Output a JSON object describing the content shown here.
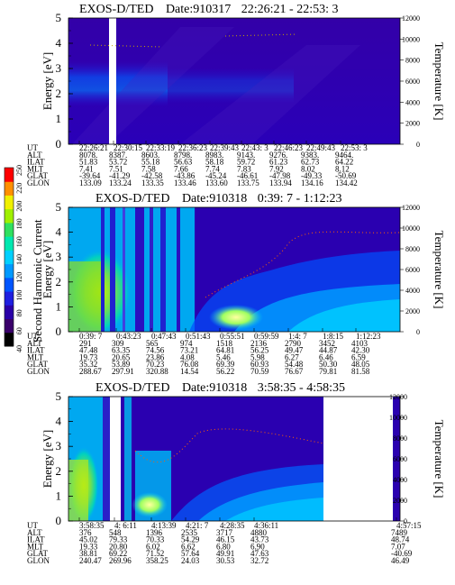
{
  "colorbar": {
    "label": "Second Harmonic Current",
    "ticks": [
      "40",
      "60",
      "80",
      "100",
      "120",
      "140",
      "160",
      "180",
      "200",
      "220",
      "250"
    ],
    "colors": [
      "#000000",
      "#3a006a",
      "#2a00a8",
      "#1f1fe0",
      "#0055ff",
      "#0099ff",
      "#00d0ff",
      "#00e8b0",
      "#30e060",
      "#a0f000",
      "#f0f000",
      "#ff9000",
      "#ff0000"
    ]
  },
  "chart_data": [
    {
      "type": "heatmap",
      "title": "EXOS-D/TED",
      "date_label": "Date:910317",
      "time_range": "22:26:21 - 22:53: 3",
      "ylabel": "Energy [eV]",
      "y2label": "Temperature [K]",
      "ylim": [
        0,
        5
      ],
      "y_ticks": [
        "0",
        "1",
        "2",
        "3",
        "4",
        "5"
      ],
      "y2lim": [
        0,
        12000
      ],
      "y2_ticks": [
        "0",
        "2000",
        "4000",
        "6000",
        "8000",
        "10000",
        "12000"
      ],
      "table": {
        "rows": [
          {
            "label": "UT",
            "values": [
              "22:26:21",
              "22:30:15",
              "22:33:19",
              "22:36:23",
              "22:39:43",
              "22:43: 3",
              "22:46:23",
              "22:49:43",
              "22:53: 3"
            ]
          },
          {
            "label": "ALT",
            "values": [
              "8078.",
              "8387.",
              "8603.",
              "8798.",
              "8983.",
              "9143.",
              "9276.",
              "9383.",
              "9464."
            ]
          },
          {
            "label": "ILAT",
            "values": [
              "51.83",
              "53.72",
              "55.18",
              "56.63",
              "58.18",
              "59.72",
              "61.23",
              "62.73",
              "64.22"
            ]
          },
          {
            "label": "MLT",
            "values": [
              "7.41",
              "7.51",
              "7.58",
              "7.66",
              "7.74",
              "7.83",
              "7.92",
              "8.02",
              "8.12"
            ]
          },
          {
            "label": "GLAT",
            "values": [
              "-39.64",
              "-41.29",
              "-42.58",
              "-43.86",
              "-45.24",
              "-46.61",
              "-47.98",
              "-49.33",
              "-50.69"
            ]
          },
          {
            "label": "GLON",
            "values": [
              "133.09",
              "133.24",
              "133.35",
              "133.46",
              "133.60",
              "133.75",
              "133.94",
              "134.16",
              "134.42"
            ]
          }
        ]
      }
    },
    {
      "type": "heatmap",
      "title": "EXOS-D/TED",
      "date_label": "Date:910318",
      "time_range": "0:39: 7 - 1:12:23",
      "ylabel": "Energy [eV]",
      "y2label": "Temperature [K]",
      "ylim": [
        0,
        5
      ],
      "y_ticks": [
        "0",
        "1",
        "2",
        "3",
        "4",
        "5"
      ],
      "y2lim": [
        0,
        12000
      ],
      "y2_ticks": [
        "0",
        "2000",
        "4000",
        "6000",
        "8000",
        "10000",
        "12000"
      ],
      "table": {
        "rows": [
          {
            "label": "UT",
            "values": [
              "0:39: 7",
              "0:43:23",
              "0:47:43",
              "0:51:43",
              "0:55:51",
              "0:59:59",
              "1:4: 7",
              "1:8:15",
              "1:12:23"
            ]
          },
          {
            "label": "ALT",
            "values": [
              "291",
              "309",
              "565",
              "974",
              "1518",
              "2136",
              "2790",
              "3452",
              "4103"
            ]
          },
          {
            "label": "ILAT",
            "values": [
              "47.48",
              "63.35",
              "74.56",
              "73.21",
              "64.81",
              "56.25",
              "49.47",
              "44.87",
              "42.30"
            ]
          },
          {
            "label": "MLT",
            "values": [
              "19.73",
              "20.65",
              "23.86",
              "4.08",
              "5.46",
              "5.98",
              "6.27",
              "6.46",
              "6.59"
            ]
          },
          {
            "label": "GLAT",
            "values": [
              "35.32",
              "53.89",
              "70.23",
              "76.08",
              "69.39",
              "60.93",
              "54.48",
              "50.30",
              "48.05"
            ]
          },
          {
            "label": "GLON",
            "values": [
              "288.67",
              "297.91",
              "320.88",
              "14.54",
              "56.22",
              "70.59",
              "76.67",
              "79.81",
              "81.58"
            ]
          }
        ]
      }
    },
    {
      "type": "heatmap",
      "title": "EXOS-D/TED",
      "date_label": "Date:910318",
      "time_range": "3:58:35 - 4:58:35",
      "ylabel": "Energy [eV]",
      "y2label": "Temperature [K]",
      "ylim": [
        0,
        5
      ],
      "y_ticks": [
        "0",
        "1",
        "2",
        "3",
        "4",
        "5"
      ],
      "y2lim": [
        0,
        12000
      ],
      "y2_ticks": [
        "0",
        "2000",
        "4000",
        "6000",
        "8000",
        "10000",
        "12000"
      ],
      "table": {
        "rows": [
          {
            "label": "UT",
            "values": [
              "3:58:35",
              "4: 6:11",
              "4:13:39",
              "4:21: 7",
              "4:28:35",
              "4:36:11",
              "4:57:15"
            ]
          },
          {
            "label": "ALT",
            "values": [
              "376",
              "548",
              "1396",
              "2535",
              "3717",
              "4880",
              "7489"
            ]
          },
          {
            "label": "ILAT",
            "values": [
              "45.02",
              "79.33",
              "70.33",
              "54.29",
              "46.15",
              "43.73",
              "48.74"
            ]
          },
          {
            "label": "MLT",
            "values": [
              "19.33",
              "20.80",
              "6.02",
              "6.62",
              "6.80",
              "6.90",
              "7.07"
            ]
          },
          {
            "label": "GLAT",
            "values": [
              "38.81",
              "69.22",
              "71.52",
              "57.64",
              "49.91",
              "47.63",
              "-40.69"
            ]
          },
          {
            "label": "GLON",
            "values": [
              "240.47",
              "269.96",
              "358.25",
              "24.03",
              "30.53",
              "32.72",
              "46.49"
            ]
          }
        ]
      }
    }
  ]
}
